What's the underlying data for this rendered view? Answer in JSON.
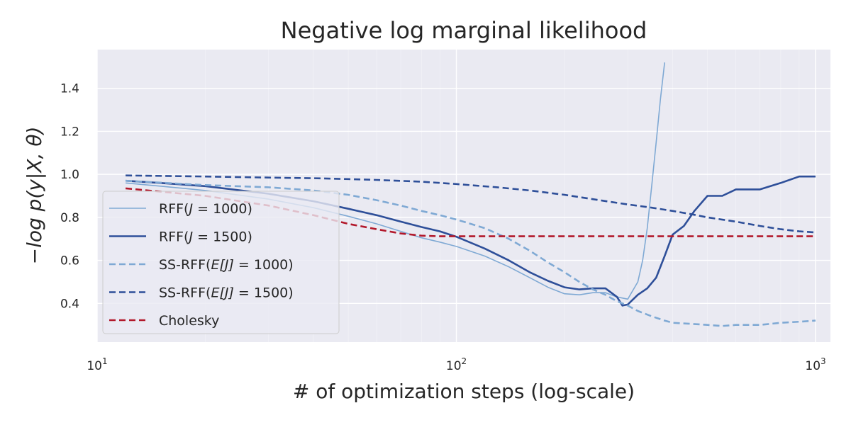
{
  "chart_data": {
    "type": "line",
    "title": "Negative log marginal likelihood",
    "xlabel": "# of optimization steps (log-scale)",
    "ylabel": "−log p(y|X, θ)",
    "xscale": "log",
    "xlim": [
      10,
      1100
    ],
    "ylim": [
      0.22,
      1.58
    ],
    "xticks": [
      {
        "value": 10,
        "base": "10",
        "exp": "1"
      },
      {
        "value": 100,
        "base": "10",
        "exp": "2"
      },
      {
        "value": 1000,
        "base": "10",
        "exp": "3"
      }
    ],
    "yticks": [
      {
        "value": 0.4,
        "label": "0.4"
      },
      {
        "value": 0.6,
        "label": "0.6"
      },
      {
        "value": 0.8,
        "label": "0.8"
      },
      {
        "value": 1.0,
        "label": "1.0"
      },
      {
        "value": 1.2,
        "label": "1.2"
      },
      {
        "value": 1.4,
        "label": "1.4"
      }
    ],
    "grid": true,
    "legend_position": "center-left",
    "series": [
      {
        "name": "RFF(J = 1000)",
        "label_prefix": "RFF(",
        "label_var": "J",
        "label_suffix": " = 1000)",
        "color": "#7fa9d4",
        "dash": "solid",
        "width": 1.6,
        "x": [
          12,
          15,
          20,
          30,
          40,
          50,
          60,
          70,
          80,
          90,
          100,
          120,
          140,
          160,
          180,
          200,
          220,
          240,
          260,
          280,
          300,
          320,
          330,
          340,
          350,
          360,
          370,
          380
        ],
        "y": [
          0.96,
          0.945,
          0.925,
          0.885,
          0.845,
          0.805,
          0.77,
          0.735,
          0.705,
          0.685,
          0.665,
          0.62,
          0.57,
          0.52,
          0.475,
          0.445,
          0.44,
          0.45,
          0.45,
          0.43,
          0.42,
          0.5,
          0.6,
          0.75,
          0.95,
          1.15,
          1.35,
          1.52
        ]
      },
      {
        "name": "RFF(J = 1500)",
        "label_prefix": "RFF(",
        "label_var": "J",
        "label_suffix": " = 1500)",
        "color": "#2e4f99",
        "dash": "solid",
        "width": 2.6,
        "x": [
          12,
          15,
          20,
          30,
          40,
          50,
          60,
          70,
          80,
          90,
          100,
          120,
          140,
          160,
          180,
          200,
          220,
          240,
          260,
          280,
          290,
          300,
          320,
          340,
          360,
          380,
          400,
          430,
          460,
          500,
          550,
          600,
          700,
          800,
          900,
          1000
        ],
        "y": [
          0.97,
          0.96,
          0.945,
          0.91,
          0.875,
          0.84,
          0.81,
          0.78,
          0.755,
          0.735,
          0.71,
          0.655,
          0.6,
          0.545,
          0.505,
          0.475,
          0.465,
          0.47,
          0.47,
          0.43,
          0.39,
          0.395,
          0.44,
          0.47,
          0.52,
          0.62,
          0.72,
          0.76,
          0.83,
          0.9,
          0.9,
          0.93,
          0.93,
          0.96,
          0.99,
          0.99
        ]
      },
      {
        "name": "SS-RFF(E[J] = 1000)",
        "label_prefix": "SS-RFF(",
        "label_var": "E[J]",
        "label_suffix": " = 1000)",
        "color": "#7fa9d4",
        "dash": "dashed",
        "width": 2.6,
        "x": [
          12,
          20,
          30,
          40,
          50,
          60,
          70,
          80,
          90,
          100,
          120,
          140,
          160,
          180,
          200,
          220,
          240,
          260,
          280,
          300,
          320,
          350,
          380,
          400,
          450,
          500,
          550,
          600,
          700,
          800,
          900,
          1000
        ],
        "y": [
          0.97,
          0.95,
          0.94,
          0.925,
          0.905,
          0.88,
          0.855,
          0.83,
          0.81,
          0.79,
          0.75,
          0.7,
          0.645,
          0.59,
          0.545,
          0.5,
          0.465,
          0.44,
          0.41,
          0.39,
          0.365,
          0.34,
          0.32,
          0.31,
          0.305,
          0.3,
          0.295,
          0.3,
          0.3,
          0.31,
          0.315,
          0.32
        ]
      },
      {
        "name": "SS-RFF(E[J] = 1500)",
        "label_prefix": "SS-RFF(",
        "label_var": "E[J]",
        "label_suffix": " = 1500)",
        "color": "#2e4f99",
        "dash": "dashed",
        "width": 2.6,
        "x": [
          12,
          20,
          30,
          40,
          50,
          60,
          80,
          100,
          130,
          160,
          200,
          250,
          300,
          350,
          400,
          450,
          500,
          600,
          700,
          800,
          900,
          1000
        ],
        "y": [
          0.995,
          0.99,
          0.985,
          0.982,
          0.978,
          0.974,
          0.966,
          0.955,
          0.94,
          0.925,
          0.905,
          0.88,
          0.86,
          0.845,
          0.83,
          0.815,
          0.8,
          0.78,
          0.76,
          0.745,
          0.735,
          0.73
        ]
      },
      {
        "name": "Cholesky",
        "label_prefix": "Cholesky",
        "label_var": "",
        "label_suffix": "",
        "color": "#b2182b",
        "dash": "dashed",
        "width": 2.6,
        "x": [
          12,
          20,
          30,
          40,
          50,
          60,
          70,
          80,
          90,
          100,
          200,
          500,
          1000
        ],
        "y": [
          0.935,
          0.9,
          0.855,
          0.81,
          0.77,
          0.745,
          0.725,
          0.715,
          0.712,
          0.712,
          0.712,
          0.712,
          0.712
        ]
      }
    ]
  }
}
